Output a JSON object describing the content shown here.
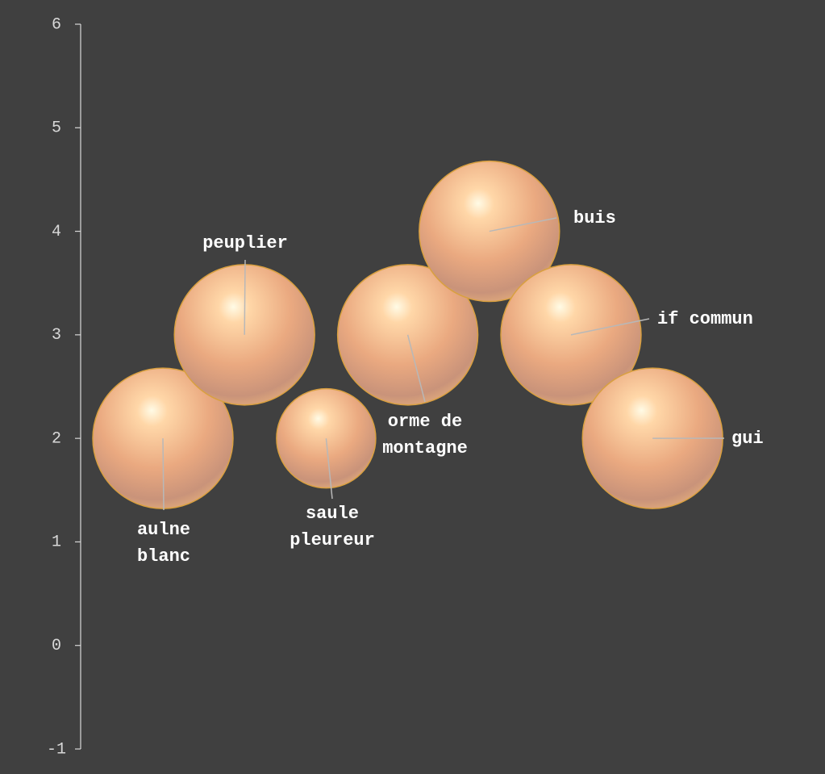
{
  "chart_data": {
    "type": "bubble",
    "categories": [
      "aulne blanc",
      "peuplier",
      "saule pleureur",
      "orme de montagne",
      "buis",
      "if commun",
      "gui"
    ],
    "series": [
      {
        "color": "#f0b07f",
        "values": [
          2,
          3,
          2,
          3,
          4,
          3,
          2
        ],
        "sizes": [
          10,
          10,
          5,
          10,
          10,
          10,
          10
        ]
      }
    ],
    "ylim": [
      -1,
      6
    ],
    "yticks": [
      -1,
      0,
      1,
      2,
      3,
      4,
      5,
      6
    ]
  }
}
